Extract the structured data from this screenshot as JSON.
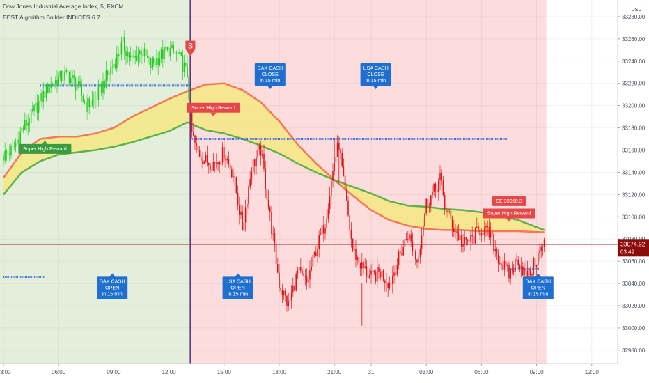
{
  "header": {
    "symbol_line": "Dow Jones Industrial Average Index, 5, FXCM",
    "indicator_line": "BEST Algorithm Builder INDICES 6.7"
  },
  "currency_badge": "USD",
  "colors": {
    "bull_zone": "#e3eedb",
    "bear_zone": "#fcdcdc",
    "bull_candle": "#22cc22",
    "bear_candle": "#e0161b",
    "band_fill": "#f4e883",
    "band_upper": "#f56a4a",
    "band_lower": "#4cab3c",
    "level_line": "#3b6fe0",
    "info_label": "#1e6fcf",
    "reward_label": "#e54848",
    "bull_label": "#3a9c3e",
    "divider": "#5c3a86",
    "price_badge": "#8b0a0a"
  },
  "chart_data": {
    "type": "candlestick",
    "y_axis": {
      "range": [
        32968,
        33295
      ],
      "ticks": [
        "33280.00",
        "33260.00",
        "33240.00",
        "33220.00",
        "33200.00",
        "33180.00",
        "33160.00",
        "33140.00",
        "33120.00",
        "33100.00",
        "33080.00",
        "33060.00",
        "33040.00",
        "33020.00",
        "33000.00",
        "32980.00"
      ]
    },
    "x_axis": {
      "ticks": [
        {
          "label": "3:00",
          "bar": 0
        },
        {
          "label": "06:00",
          "bar": 36
        },
        {
          "label": "09:00",
          "bar": 72
        },
        {
          "label": "12:00",
          "bar": 108
        },
        {
          "label": "15:00",
          "bar": 144
        },
        {
          "label": "18:00",
          "bar": 180
        },
        {
          "label": "21:00",
          "bar": 216
        },
        {
          "label": "31",
          "bar": 240
        },
        {
          "label": "03:00",
          "bar": 276
        },
        {
          "label": "06:00",
          "bar": 312
        },
        {
          "label": "09:00",
          "bar": 348
        },
        {
          "label": "12:00",
          "bar": 384
        }
      ]
    },
    "regime_switch_bar": 122,
    "last_bar": 353,
    "price_path": [
      [
        0,
        33155
      ],
      [
        6,
        33160
      ],
      [
        12,
        33178
      ],
      [
        18,
        33190
      ],
      [
        24,
        33205
      ],
      [
        30,
        33218
      ],
      [
        36,
        33224
      ],
      [
        42,
        33228
      ],
      [
        48,
        33218
      ],
      [
        54,
        33200
      ],
      [
        60,
        33205
      ],
      [
        66,
        33222
      ],
      [
        72,
        33238
      ],
      [
        78,
        33255
      ],
      [
        84,
        33240
      ],
      [
        90,
        33250
      ],
      [
        96,
        33236
      ],
      [
        102,
        33244
      ],
      [
        108,
        33250
      ],
      [
        114,
        33245
      ],
      [
        120,
        33228
      ],
      [
        123,
        33175
      ],
      [
        126,
        33160
      ],
      [
        132,
        33150
      ],
      [
        138,
        33148
      ],
      [
        144,
        33158
      ],
      [
        150,
        33138
      ],
      [
        156,
        33090
      ],
      [
        162,
        33145
      ],
      [
        168,
        33160
      ],
      [
        174,
        33100
      ],
      [
        180,
        33040
      ],
      [
        186,
        33020
      ],
      [
        192,
        33050
      ],
      [
        198,
        33040
      ],
      [
        204,
        33070
      ],
      [
        210,
        33095
      ],
      [
        216,
        33150
      ],
      [
        219,
        33165
      ],
      [
        222,
        33130
      ],
      [
        228,
        33070
      ],
      [
        234,
        33055
      ],
      [
        240,
        33045
      ],
      [
        246,
        33050
      ],
      [
        252,
        33040
      ],
      [
        258,
        33062
      ],
      [
        264,
        33085
      ],
      [
        270,
        33060
      ],
      [
        276,
        33112
      ],
      [
        282,
        33125
      ],
      [
        285,
        33135
      ],
      [
        288,
        33110
      ],
      [
        294,
        33090
      ],
      [
        300,
        33075
      ],
      [
        306,
        33080
      ],
      [
        312,
        33090
      ],
      [
        318,
        33082
      ],
      [
        324,
        33060
      ],
      [
        330,
        33048
      ],
      [
        336,
        33062
      ],
      [
        342,
        33044
      ],
      [
        348,
        33062
      ],
      [
        353,
        33076
      ]
    ],
    "band_upper_path": [
      [
        0,
        33135
      ],
      [
        12,
        33158
      ],
      [
        24,
        33170
      ],
      [
        36,
        33172
      ],
      [
        48,
        33172
      ],
      [
        60,
        33175
      ],
      [
        72,
        33180
      ],
      [
        84,
        33190
      ],
      [
        96,
        33198
      ],
      [
        108,
        33206
      ],
      [
        120,
        33213
      ],
      [
        132,
        33219
      ],
      [
        144,
        33220
      ],
      [
        156,
        33214
      ],
      [
        168,
        33203
      ],
      [
        180,
        33186
      ],
      [
        192,
        33165
      ],
      [
        204,
        33148
      ],
      [
        216,
        33133
      ],
      [
        228,
        33119
      ],
      [
        240,
        33106
      ],
      [
        252,
        33097
      ],
      [
        264,
        33092
      ],
      [
        276,
        33089
      ],
      [
        288,
        33088
      ],
      [
        300,
        33088
      ],
      [
        312,
        33087
      ],
      [
        324,
        33087
      ],
      [
        336,
        33087
      ],
      [
        353,
        33086
      ]
    ],
    "band_lower_path": [
      [
        0,
        33120
      ],
      [
        12,
        33140
      ],
      [
        24,
        33150
      ],
      [
        36,
        33156
      ],
      [
        48,
        33158
      ],
      [
        60,
        33160
      ],
      [
        72,
        33163
      ],
      [
        84,
        33167
      ],
      [
        96,
        33172
      ],
      [
        108,
        33177
      ],
      [
        120,
        33185
      ],
      [
        132,
        33178
      ],
      [
        144,
        33175
      ],
      [
        156,
        33170
      ],
      [
        168,
        33164
      ],
      [
        180,
        33157
      ],
      [
        192,
        33148
      ],
      [
        204,
        33140
      ],
      [
        216,
        33133
      ],
      [
        228,
        33127
      ],
      [
        240,
        33121
      ],
      [
        252,
        33114
      ],
      [
        264,
        33110
      ],
      [
        276,
        33109
      ],
      [
        288,
        33107
      ],
      [
        300,
        33106
      ],
      [
        312,
        33104
      ],
      [
        324,
        33101
      ],
      [
        336,
        33097
      ],
      [
        353,
        33088
      ]
    ],
    "horizontal_levels": [
      {
        "value": 33218,
        "from_bar": 24,
        "to_bar": 123
      },
      {
        "value": 33170,
        "from_bar": 123,
        "to_bar": 330
      },
      {
        "value": 33046,
        "from_bar": 0,
        "to_bar": 27
      },
      {
        "value": 33053,
        "from_bar": 330,
        "to_bar": 350
      }
    ],
    "last_price": {
      "value": 33074.92,
      "label": "33074.92",
      "countdown": "03:49"
    },
    "signals": [
      {
        "text": "S",
        "bar": 122,
        "value": 33252,
        "kind": "sell-marker"
      }
    ],
    "annotations": [
      {
        "lines": [
          "Super High Reward"
        ],
        "bar": 27,
        "value": 33161,
        "kind": "bull",
        "pointer": "up"
      },
      {
        "lines": [
          "Super High Reward"
        ],
        "bar": 137,
        "value": 33198,
        "kind": "reward",
        "pointer": "down"
      },
      {
        "lines": [
          "DAX CASH",
          "CLOSE",
          "in 15 min"
        ],
        "bar": 174,
        "value": 33228,
        "kind": "info",
        "pointer": "down"
      },
      {
        "lines": [
          "USA CASH",
          "CLOSE",
          "in 15 min"
        ],
        "bar": 243,
        "value": 33228,
        "kind": "info",
        "pointer": "down"
      },
      {
        "lines": [
          "SE 33050.3"
        ],
        "bar": 330,
        "value": 33114,
        "kind": "reward",
        "pointer": "none"
      },
      {
        "lines": [
          "Super High Reward"
        ],
        "bar": 330,
        "value": 33103,
        "kind": "reward",
        "pointer": "down"
      },
      {
        "lines": [
          "DAX CASH",
          "OPEN",
          "in 15 min"
        ],
        "bar": 71,
        "value": 33036,
        "kind": "info",
        "pointer": "up"
      },
      {
        "lines": [
          "USA CASH",
          "OPEN",
          "in 15 min"
        ],
        "bar": 153,
        "value": 33036,
        "kind": "info",
        "pointer": "up"
      },
      {
        "lines": [
          "DAX CASH",
          "OPEN",
          "in 15 min"
        ],
        "bar": 349,
        "value": 33036,
        "kind": "info",
        "pointer": "up"
      }
    ]
  }
}
